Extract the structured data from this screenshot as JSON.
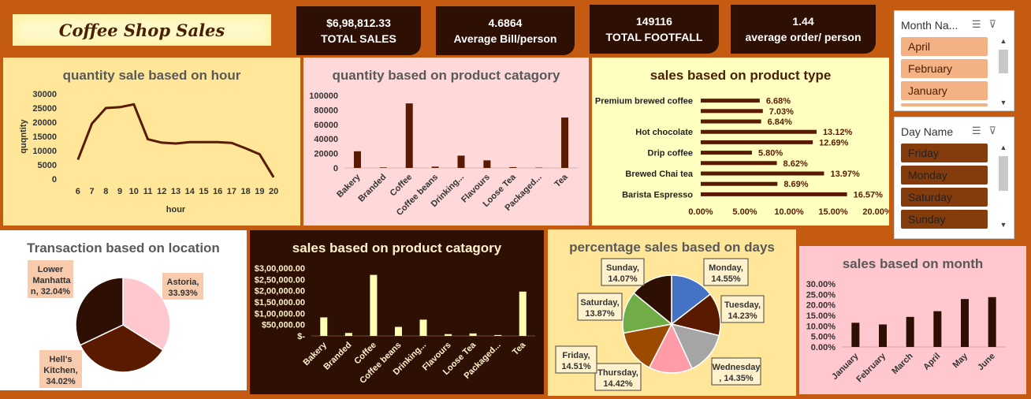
{
  "dashboard_title": "Coffee Shop Sales",
  "kpis": [
    {
      "value": "$6,98,812.33",
      "label": "TOTAL SALES"
    },
    {
      "value": "4.6864",
      "label": "Average Bill/person"
    },
    {
      "value": "149116",
      "label": "TOTAL FOOTFALL"
    },
    {
      "value": "1.44",
      "label": "average order/ person"
    }
  ],
  "slicers": {
    "month": {
      "header": "Month Na...",
      "items": [
        "April",
        "February",
        "January"
      ]
    },
    "day": {
      "header": "Day Name",
      "items": [
        "Friday",
        "Monday",
        "Saturday",
        "Sunday"
      ]
    }
  },
  "colors": {
    "background": "#c55a11",
    "dark_brown": "#5a1a00",
    "kpi_bg": "#2e0f04",
    "panel_yellow": "#ffe699",
    "panel_pink": "#ffd9d9",
    "panel_light_yellow": "#ffffc0"
  },
  "chart_data": [
    {
      "id": "hour",
      "type": "line",
      "title": "quantity sale based on hour",
      "xlabel": "hour",
      "ylabel": "quqntity",
      "categories": [
        "6",
        "7",
        "8",
        "9",
        "10",
        "11",
        "12",
        "13",
        "14",
        "15",
        "16",
        "17",
        "18",
        "19",
        "20"
      ],
      "values": [
        6800,
        19500,
        25000,
        25300,
        26300,
        14000,
        12800,
        12500,
        13000,
        13000,
        13000,
        12700,
        10800,
        8700,
        600
      ],
      "ylim": [
        0,
        30000
      ],
      "yticks": [
        "30000",
        "25000",
        "20000",
        "15000",
        "10000",
        "5000",
        "0"
      ]
    },
    {
      "id": "qty_category",
      "type": "bar",
      "title": "quantity based on product catagory",
      "categories": [
        "Bakery",
        "Branded",
        "Coffee",
        "Coffee beans",
        "Drinking...",
        "Flavours",
        "Loose Tea",
        "Packaged...",
        "Tea"
      ],
      "values": [
        23000,
        800,
        89000,
        1800,
        17000,
        10500,
        1200,
        500,
        69500
      ],
      "ylim": [
        0,
        100000
      ],
      "yticks": [
        "100000",
        "80000",
        "60000",
        "40000",
        "20000",
        "0"
      ]
    },
    {
      "id": "product_type",
      "type": "bar",
      "orientation": "horizontal",
      "title": "sales based on product type",
      "row_labels": [
        "Premium brewed coffee",
        "",
        "",
        "Hot chocolate",
        "",
        "Drip coffee",
        "",
        "Brewed Chai tea",
        "",
        "Barista Espresso"
      ],
      "values": [
        6.68,
        7.03,
        6.84,
        13.12,
        12.69,
        5.8,
        8.62,
        13.97,
        8.69,
        16.57
      ],
      "data_labels": [
        "6.68%",
        "7.03%",
        "6.84%",
        "13.12%",
        "12.69%",
        "5.80%",
        "8.62%",
        "13.97%",
        "8.69%",
        "16.57%"
      ],
      "xlim": [
        0,
        20
      ],
      "xticks": [
        "0.00%",
        "5.00%",
        "10.00%",
        "15.00%",
        "20.00%"
      ]
    },
    {
      "id": "location",
      "type": "pie",
      "title": "Transaction based on location",
      "slices": [
        {
          "label": "Astoria, 33.93%",
          "value": 33.93,
          "color": "#ffc7ce"
        },
        {
          "label": "Hell's Kitchen, 34.02%",
          "value": 34.02,
          "color": "#5a1a00"
        },
        {
          "label": "Lower Manhattan, 32.04%",
          "value": 32.04,
          "color": "#2e0f04"
        }
      ]
    },
    {
      "id": "sales_category",
      "type": "bar",
      "title": "sales based on product catagory",
      "categories": [
        "Bakery",
        "Branded",
        "Coffee",
        "Coffee beans",
        "Drinking...",
        "Flavours",
        "Loose Tea",
        "Packaged...",
        "Tea"
      ],
      "values": [
        82000,
        13000,
        270000,
        40000,
        72000,
        8000,
        11000,
        4000,
        196000
      ],
      "ylim": [
        0,
        300000
      ],
      "yticks": [
        "$3,00,000.00",
        "$2,50,000.00",
        "$2,00,000.00",
        "$1,50,000.00",
        "$1,00,000.00",
        "$50,000.00",
        "$-"
      ]
    },
    {
      "id": "days",
      "type": "pie",
      "title": "percentage sales based on days",
      "slices": [
        {
          "label": "Monday, 14.55%",
          "value": 14.55,
          "color": "#4472c4"
        },
        {
          "label": "Tuesday, 14.23%",
          "value": 14.23,
          "color": "#5a1a00"
        },
        {
          "label": "Wednesday, 14.35%",
          "value": 14.35,
          "color": "#a5a5a5"
        },
        {
          "label": "Thursday, 14.42%",
          "value": 14.42,
          "color": "#ff9ca8"
        },
        {
          "label": "Friday, 14.51%",
          "value": 14.51,
          "color": "#9c4a00"
        },
        {
          "label": "Saturday, 13.87%",
          "value": 13.87,
          "color": "#70ad47"
        },
        {
          "label": "Sunday, 14.07%",
          "value": 14.07,
          "color": "#2e0f04"
        }
      ]
    },
    {
      "id": "month",
      "type": "bar",
      "title": "sales based on month",
      "categories": [
        "January",
        "February",
        "March",
        "April",
        "May",
        "June"
      ],
      "values": [
        11.5,
        10.7,
        14.3,
        17.0,
        22.8,
        23.7
      ],
      "ylim": [
        0,
        30
      ],
      "yticks": [
        "30.00%",
        "25.00%",
        "20.00%",
        "15.00%",
        "10.00%",
        "5.00%",
        "0.00%"
      ]
    }
  ]
}
